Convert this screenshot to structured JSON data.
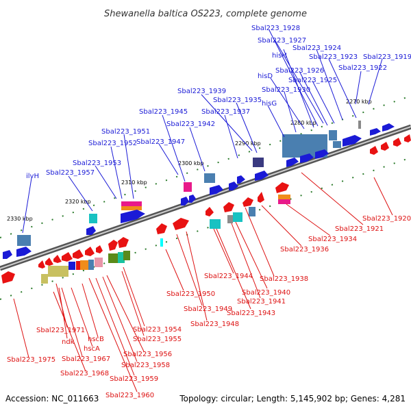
{
  "title": "Shewanella baltica OS223, complete genome",
  "footer": {
    "accession": "Accession: NC_011663",
    "topology": "Topology: circular; Length: 5,145,902 bp; Genes: 4,281"
  },
  "kbp_ticks": [
    "2270 kbp",
    "2280 kbp",
    "2290 kbp",
    "2300 kbp",
    "2310 kbp",
    "2320 kbp",
    "2330 kbp"
  ],
  "colors": {
    "forward_label": "#1a1ad6",
    "reverse_label": "#dd1111",
    "backbone": "#888888",
    "tick": "#2a7a2a"
  },
  "top_labels": [
    "Sbal223_1928",
    "Sbal223_1927",
    "hisH",
    "Sbal223_1924",
    "Sbal223_1923",
    "Sbal223_1919",
    "hisD",
    "Sbal223_1926",
    "Sbal223_1922",
    "Sbal223_1925",
    "Sbal223_1939",
    "Sbal223_1930",
    "Sbal223_1935",
    "hisG",
    "Sbal223_1945",
    "Sbal223_1937",
    "Sbal223_1942",
    "Sbal223_1951",
    "Sbal223_1952",
    "Sbal223_1947",
    "Sbal223_1953",
    "ilvH",
    "Sbal223_1957"
  ],
  "bottom_labels": [
    "Sbal223_1920",
    "Sbal223_1921",
    "Sbal223_1934",
    "Sbal223_1936",
    "Sbal223_1938",
    "Sbal223_1944",
    "Sbal223_1940",
    "Sbal223_1941",
    "Sbal223_1943",
    "Sbal223_1950",
    "Sbal223_1949",
    "Sbal223_1948",
    "Sbal223_1954",
    "Sbal223_1955",
    "Sbal223_1956",
    "Sbal223_1958",
    "Sbal223_1959",
    "Sbal223_1960",
    "Sbal223_1971",
    "ndk",
    "hscB",
    "hscA",
    "Sbal223_1967",
    "Sbal223_1968",
    "Sbal223_1975"
  ]
}
